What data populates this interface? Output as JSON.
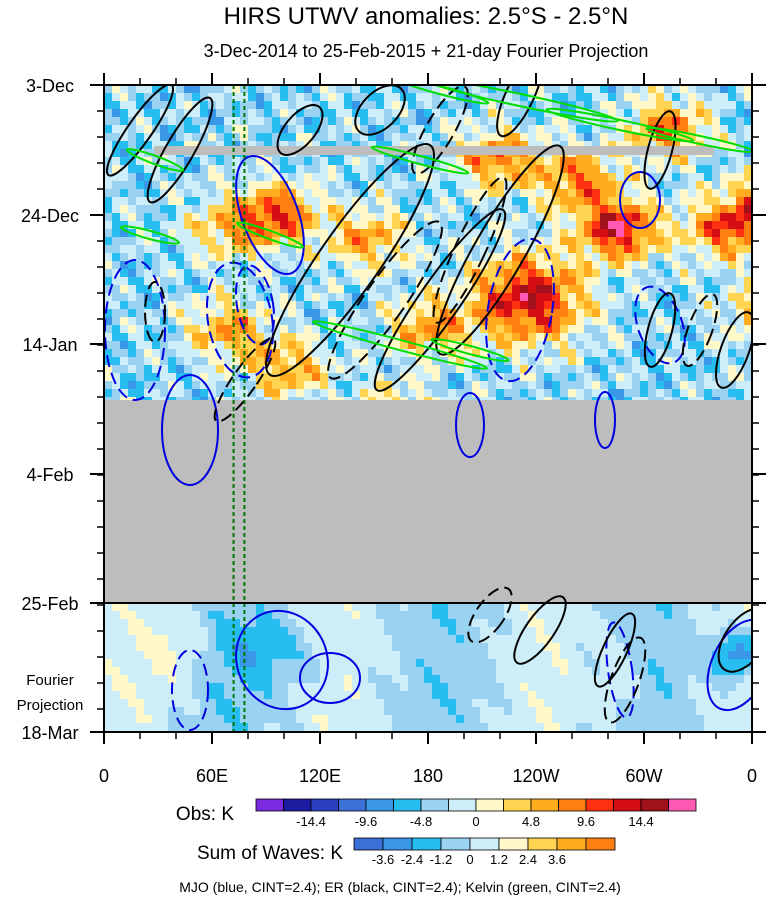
{
  "chart_data": {
    "type": "heatmap",
    "title": "HIRS UTWV anomalies: 2.5°S - 2.5°N",
    "subtitle": "3-Dec-2014 to 25-Feb-2015 + 21-day Fourier Projection",
    "x_tick_labels": [
      "0",
      "60E",
      "120E",
      "180",
      "120W",
      "60W",
      "0"
    ],
    "x_range_deg_east": [
      0,
      360
    ],
    "y_tick_labels": [
      "3-Dec",
      "24-Dec",
      "14-Jan",
      "4-Feb",
      "25-Feb"
    ],
    "y_bottom_label": "18-Mar",
    "projection_label": [
      "Fourier",
      "Projection"
    ],
    "missing_data_start": "approx 21-Jan-2015",
    "reference_longitudes_deg_east": [
      72,
      78
    ],
    "obs_colorbar": {
      "label": "Obs: K",
      "tick_labels": [
        "-14.4",
        "-9.6",
        "-4.8",
        "0",
        "4.8",
        "9.6",
        "14.4"
      ],
      "colors": [
        "#7a2be0",
        "#1c1ca0",
        "#2d3fbf",
        "#3c6fd8",
        "#3a97e8",
        "#28bdf0",
        "#9ad2f2",
        "#cdeef8",
        "#fff8c8",
        "#ffd450",
        "#ffac20",
        "#ff8010",
        "#ff3010",
        "#d40e12",
        "#a0111c",
        "#ff5ab4"
      ]
    },
    "waves_colorbar": {
      "label": "Sum of Waves: K",
      "tick_labels": [
        "-3.6",
        "-2.4",
        "-1.2",
        "0",
        "1.2",
        "2.4",
        "3.6"
      ],
      "colors": [
        "#3c6fd8",
        "#3a97e8",
        "#28bdf0",
        "#9ad2f2",
        "#cdeef8",
        "#fff8c8",
        "#ffd450",
        "#ffac20",
        "#ff8010"
      ]
    },
    "legend": "MJO (blue, CINT=2.4); ER (black, CINT=2.4); Kelvin (green, CINT=2.4)",
    "series": [
      {
        "name": "MJO",
        "color": "#0000e0",
        "cint": 2.4
      },
      {
        "name": "ER",
        "color": "#000000",
        "cint": 2.4
      },
      {
        "name": "Kelvin",
        "color": "#00dd00",
        "cint": 2.4
      }
    ],
    "colors": {
      "missing": "#bdbdbd",
      "refline": "#007700"
    }
  }
}
